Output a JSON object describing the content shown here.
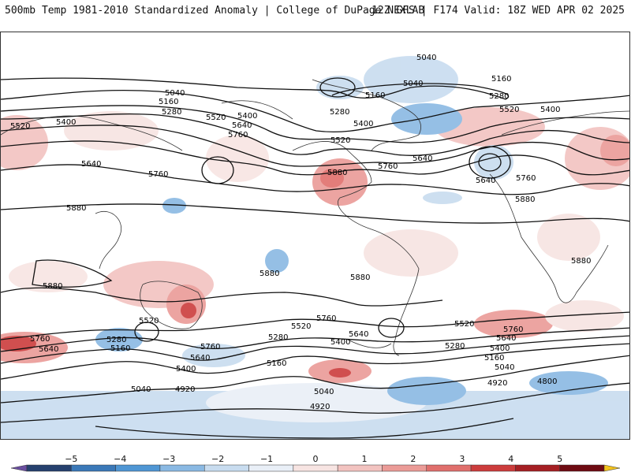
{
  "header": {
    "title": "500mb Temp 1981-2010 Standardized Anomaly | College of DuPage NEXLAB",
    "run_info": "12Z GFS | F174 Valid: 18Z WED APR 02 2025"
  },
  "colorbar": {
    "ticks": [
      "−5",
      "−4",
      "−3",
      "−2",
      "−1",
      "0",
      "1",
      "2",
      "3",
      "4",
      "5"
    ],
    "colors": [
      "#6a4fa0",
      "#25406e",
      "#3a78b8",
      "#4f96d4",
      "#8ab9e3",
      "#c8dcef",
      "#e9eff7",
      "#f7e4e2",
      "#f2c3c0",
      "#eb9b97",
      "#e06f6c",
      "#cc3c3c",
      "#a51f23",
      "#6e0b12",
      "#f2c21d"
    ]
  },
  "map": {
    "contour_labels": [
      "5040",
      "5160",
      "5280",
      "5400",
      "5520",
      "5640",
      "5760",
      "5880",
      "4920",
      "4800"
    ]
  }
}
